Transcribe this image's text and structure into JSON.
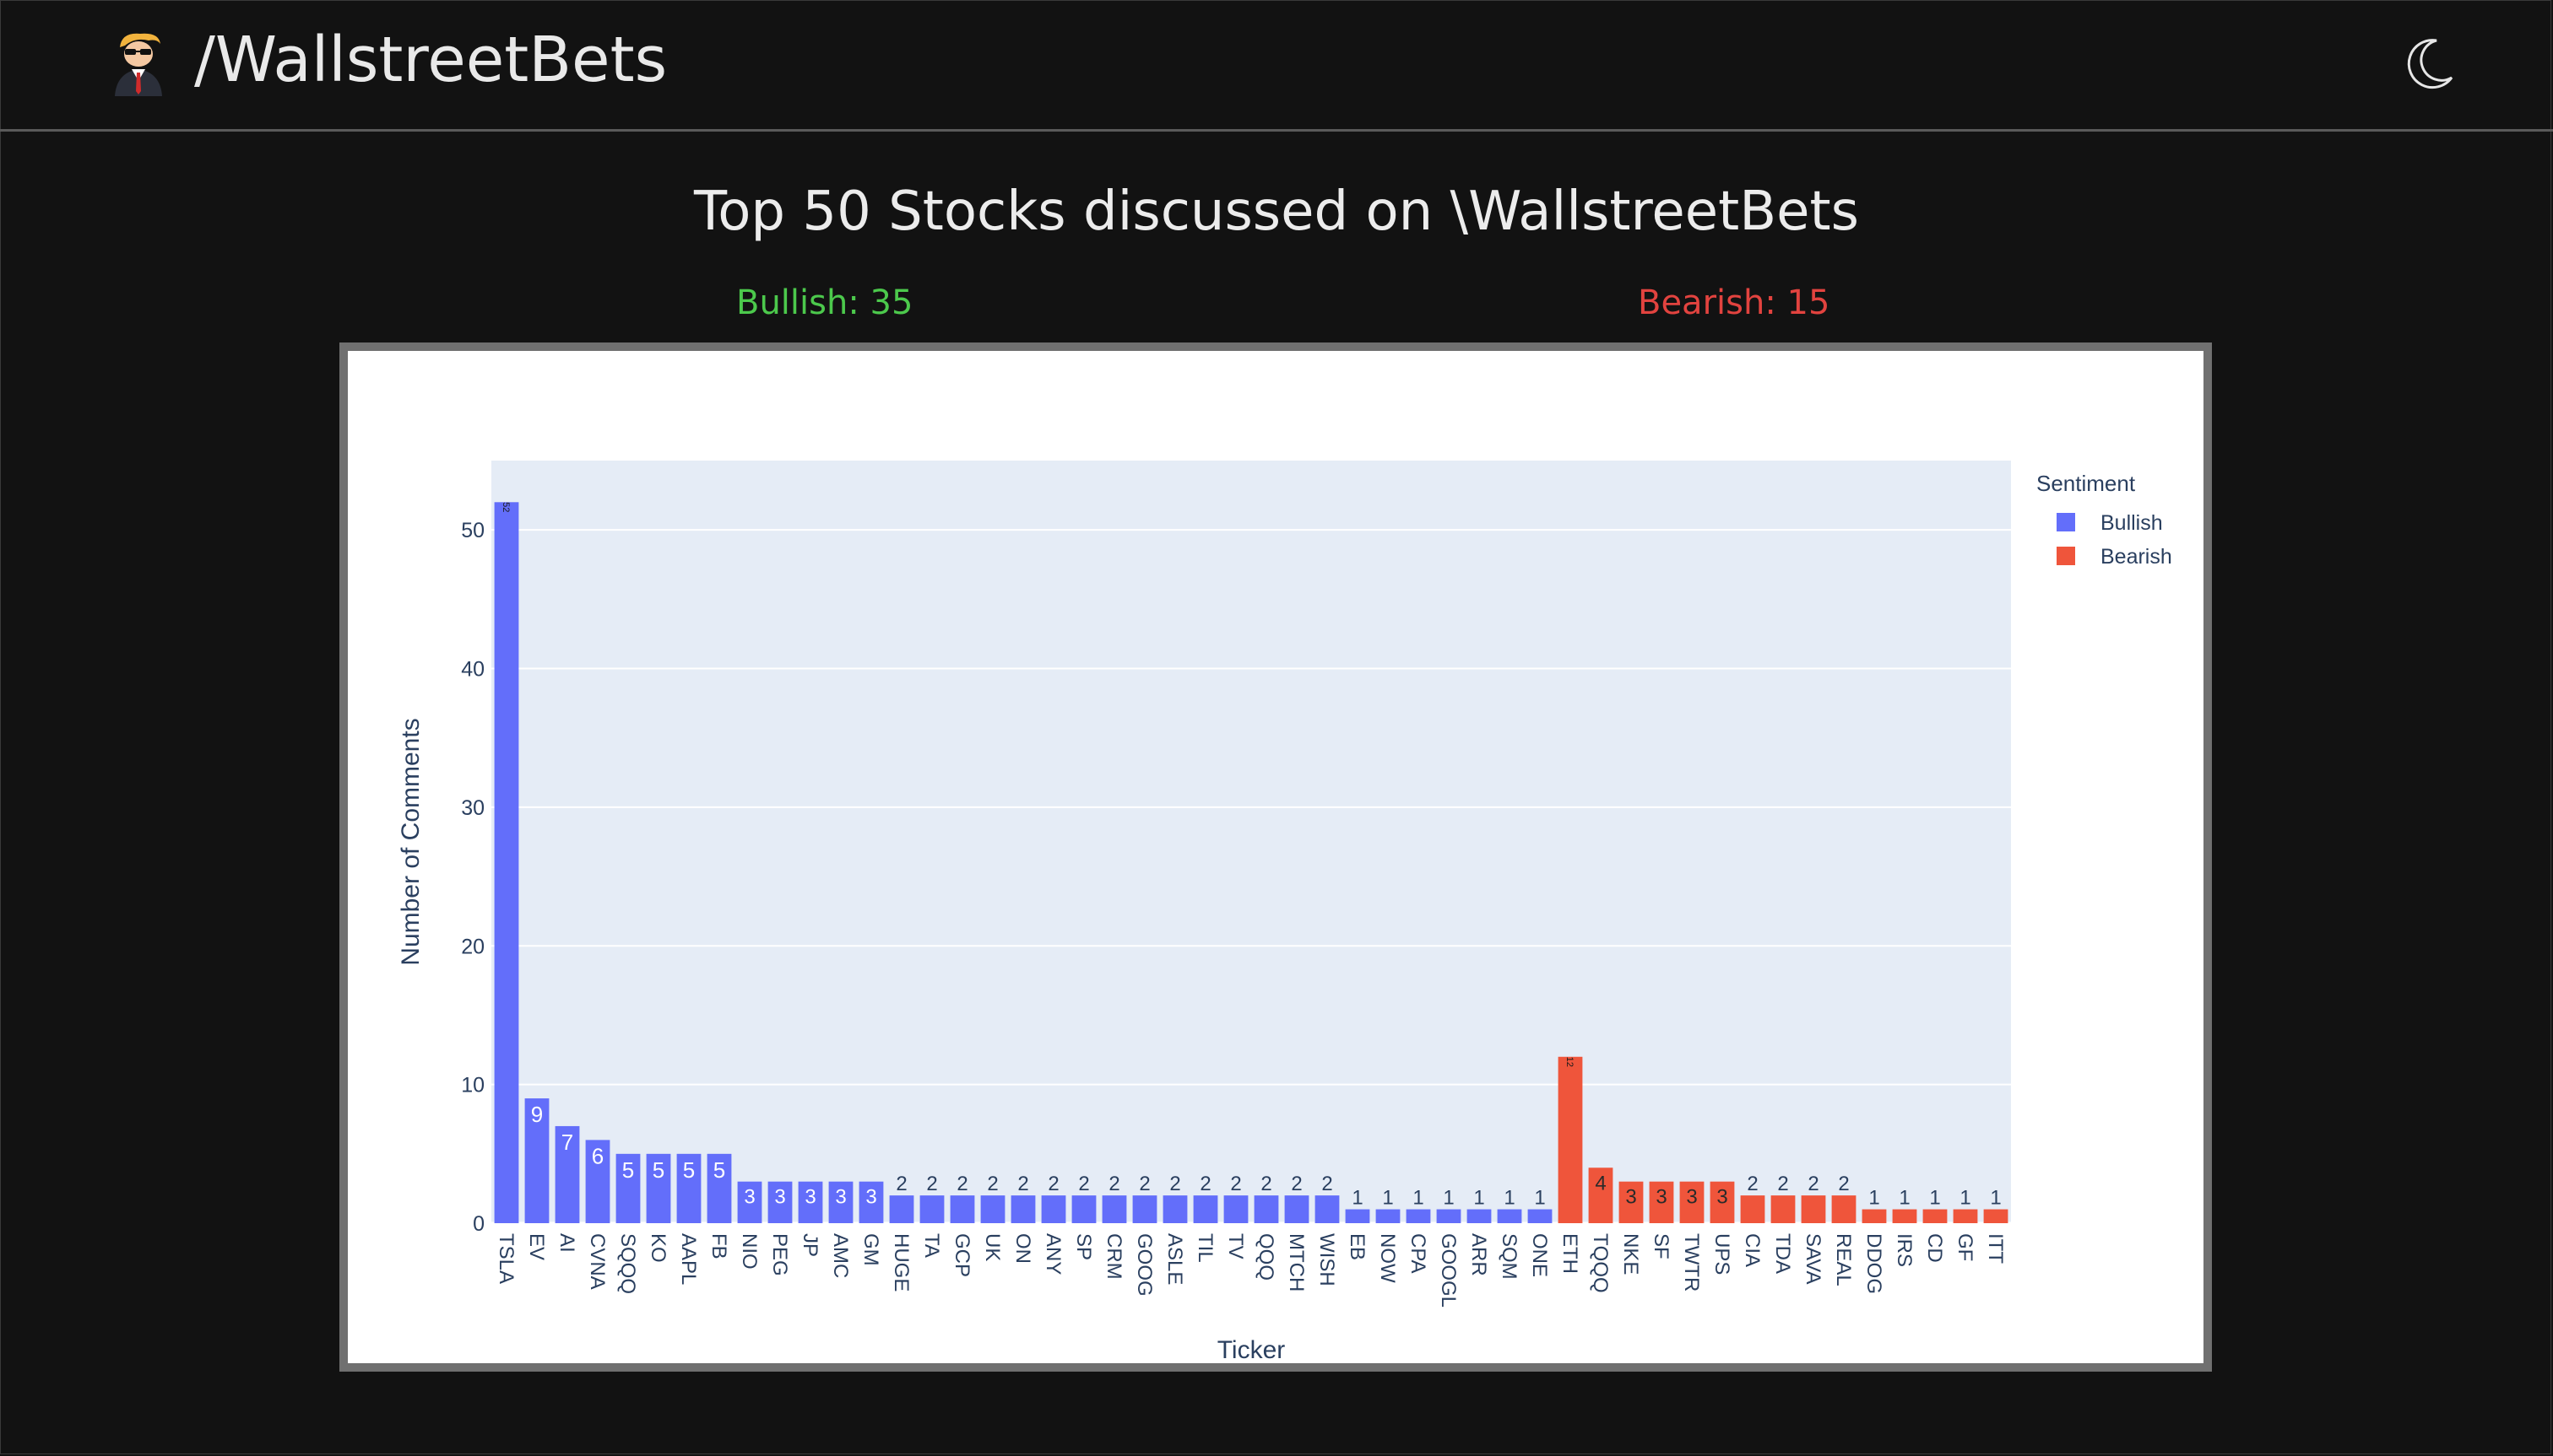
{
  "app": {
    "title": "/WallstreetBets",
    "logo_icon": "wsb-guy-logo-icon",
    "theme_toggle_icon": "moon-icon"
  },
  "main": {
    "title": "Top 50 Stocks discussed on \\WallstreetBets",
    "bullish_label": "Bullish: 35",
    "bearish_label": "Bearish: 15",
    "bullish_color": "#4cc94c",
    "bearish_color": "#e2433f"
  },
  "chart_data": {
    "type": "bar",
    "xlabel": "Ticker",
    "ylabel": "Number of Comments",
    "ylim": [
      0,
      55
    ],
    "yticks": [
      0,
      10,
      20,
      30,
      40,
      50
    ],
    "grid": true,
    "legend": {
      "title": "Sentiment",
      "placement": "top-right, outside plot area"
    },
    "plot_background": "#e5ecf6",
    "series": [
      {
        "name": "Bullish",
        "color": "#636efa",
        "categories": [
          "TSLA",
          "EV",
          "AI",
          "CVNA",
          "SQQQ",
          "KO",
          "AAPL",
          "FB",
          "NIO",
          "PEG",
          "JP",
          "AMC",
          "GM",
          "HUGE",
          "TA",
          "GCP",
          "UK",
          "ON",
          "ANY",
          "SP",
          "CRM",
          "GOOG",
          "ASLE",
          "TIL",
          "TV",
          "QQQ",
          "MTCH",
          "WISH",
          "EB",
          "NOW",
          "CPA",
          "GOOGL",
          "ARR",
          "SQM",
          "ONE"
        ],
        "values": [
          52,
          9,
          7,
          6,
          5,
          5,
          5,
          5,
          3,
          3,
          3,
          3,
          3,
          2,
          2,
          2,
          2,
          2,
          2,
          2,
          2,
          2,
          2,
          2,
          2,
          2,
          2,
          2,
          1,
          1,
          1,
          1,
          1,
          1,
          1
        ]
      },
      {
        "name": "Bearish",
        "color": "#ef553b",
        "categories": [
          "ETH",
          "TQQQ",
          "NKE",
          "SF",
          "TWTR",
          "UPS",
          "CIA",
          "TDA",
          "SAVA",
          "REAL",
          "DDOG",
          "IRS",
          "CD",
          "GF",
          "ITT"
        ],
        "values": [
          12,
          4,
          3,
          3,
          3,
          3,
          2,
          2,
          2,
          2,
          1,
          1,
          1,
          1,
          1
        ]
      }
    ]
  }
}
